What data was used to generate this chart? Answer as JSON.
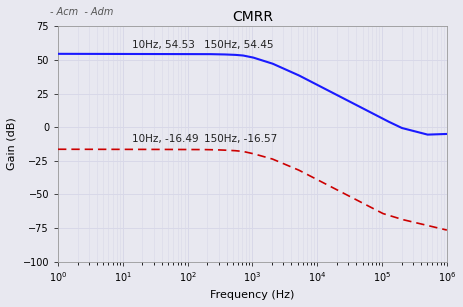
{
  "title": "CMRR",
  "legend_label": "- Acm  - Adm",
  "xlabel": "Frequency (Hz)",
  "ylabel": "Gain (dB)",
  "ylim": [
    -100,
    75
  ],
  "xlim_log": [
    0,
    6
  ],
  "yticks": [
    -100,
    -75,
    -50,
    -25,
    0,
    25,
    50,
    75
  ],
  "blue_color": "#1a1aff",
  "red_color": "#cc0000",
  "background_color": "#e8e8f0",
  "grid_color": "#d8d8e8",
  "ann_text_color": "#222222",
  "legend_color": "#555555",
  "adm_points": {
    "freqs": [
      1,
      2,
      5,
      10,
      20,
      50,
      100,
      150,
      200,
      300,
      500,
      700,
      1000,
      2000,
      5000,
      10000,
      20000,
      50000,
      100000,
      200000,
      500000,
      1000000
    ],
    "gains": [
      54.6,
      54.58,
      54.56,
      54.53,
      54.52,
      54.5,
      54.48,
      54.45,
      54.4,
      54.28,
      53.95,
      53.45,
      52.0,
      47.5,
      39.0,
      31.5,
      24.0,
      14.0,
      6.5,
      -0.5,
      -5.5,
      -5.0
    ]
  },
  "acm_points": {
    "freqs": [
      1,
      2,
      5,
      10,
      20,
      50,
      100,
      150,
      200,
      300,
      500,
      700,
      1000,
      2000,
      5000,
      10000,
      20000,
      50000,
      100000,
      200000,
      500000,
      1000000
    ],
    "gains": [
      -16.38,
      -16.39,
      -16.42,
      -16.49,
      -16.5,
      -16.52,
      -16.55,
      -16.57,
      -16.65,
      -16.85,
      -17.3,
      -17.9,
      -19.5,
      -23.5,
      -31.5,
      -39.0,
      -46.5,
      -56.5,
      -64.0,
      -68.5,
      -73.0,
      -76.5
    ]
  },
  "ann_adm_1": {
    "text": "10Hz, 54.53",
    "xdata": 10,
    "ydata": 54.53,
    "xtxt": 14,
    "ytxt": 61
  },
  "ann_adm_2": {
    "text": "150Hz, 54.45",
    "xdata": 150,
    "ydata": 54.45,
    "xtxt": 180,
    "ytxt": 61
  },
  "ann_acm_1": {
    "text": "10Hz, -16.49",
    "xdata": 10,
    "ydata": -16.49,
    "xtxt": 14,
    "ytxt": -9
  },
  "ann_acm_2": {
    "text": "150Hz, -16.57",
    "xdata": 150,
    "ydata": -16.57,
    "xtxt": 180,
    "ytxt": -9
  }
}
